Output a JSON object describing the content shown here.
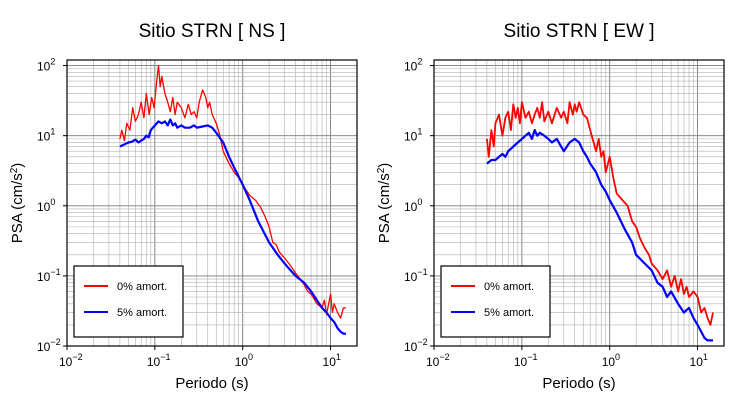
{
  "chart_data": [
    {
      "type": "line",
      "title": "Sitio STRN [ NS ]",
      "xlabel": "Periodo (s)",
      "ylabel_main": "PSA (cm/s",
      "ylabel_sup": "2",
      "ylabel_tail": ")",
      "xscale": "log",
      "yscale": "log",
      "xlim": [
        0.01,
        20
      ],
      "ylim": [
        0.01,
        120
      ],
      "grid": true,
      "legend_position": "bottom-left",
      "x_ticks": [
        {
          "base": "10",
          "exp": "−2"
        },
        {
          "base": "10",
          "exp": "−1"
        },
        {
          "base": "10",
          "exp": "0"
        },
        {
          "base": "10",
          "exp": "1"
        }
      ],
      "y_ticks": [
        {
          "base": "10",
          "exp": "−2"
        },
        {
          "base": "10",
          "exp": "−1"
        },
        {
          "base": "10",
          "exp": "0"
        },
        {
          "base": "10",
          "exp": "1"
        },
        {
          "base": "10",
          "exp": "2"
        }
      ],
      "series": [
        {
          "name": "0% amort.",
          "color": "#ff0000",
          "line_width": 1.3,
          "x": [
            0.04,
            0.042,
            0.045,
            0.048,
            0.052,
            0.056,
            0.06,
            0.065,
            0.07,
            0.075,
            0.08,
            0.086,
            0.092,
            0.098,
            0.105,
            0.11,
            0.115,
            0.12,
            0.13,
            0.14,
            0.15,
            0.16,
            0.17,
            0.18,
            0.2,
            0.22,
            0.24,
            0.26,
            0.28,
            0.3,
            0.32,
            0.35,
            0.38,
            0.4,
            0.42,
            0.45,
            0.5,
            0.55,
            0.6,
            0.7,
            0.8,
            0.9,
            1.0,
            1.2,
            1.4,
            1.6,
            1.8,
            2.0,
            2.2,
            2.4,
            2.6,
            3.0,
            3.5,
            4.0,
            4.5,
            5.0,
            5.5,
            6.0,
            7.0,
            8.0,
            8.5,
            9.0,
            10.0,
            10.5,
            11.0,
            12.0,
            13.0,
            14.0,
            15.0
          ],
          "y": [
            9.0,
            12.0,
            8.5,
            15.0,
            12.0,
            25.0,
            16.0,
            20.0,
            30.0,
            18.0,
            40.0,
            20.0,
            35.0,
            25.0,
            60.0,
            100.0,
            50.0,
            70.0,
            40.0,
            30.0,
            22.0,
            35.0,
            20.0,
            30.0,
            25.0,
            18.0,
            28.0,
            20.0,
            22.0,
            18.0,
            30.0,
            45.0,
            35.0,
            25.0,
            30.0,
            20.0,
            15.0,
            10.0,
            6.0,
            4.0,
            3.0,
            2.5,
            2.0,
            1.4,
            1.2,
            0.95,
            0.7,
            0.5,
            0.3,
            0.28,
            0.22,
            0.18,
            0.14,
            0.11,
            0.09,
            0.075,
            0.06,
            0.055,
            0.04,
            0.035,
            0.045,
            0.028,
            0.055,
            0.03,
            0.04,
            0.03,
            0.025,
            0.035,
            0.035
          ]
        },
        {
          "name": "5% amort.",
          "color": "#0000ff",
          "line_width": 2.2,
          "x": [
            0.04,
            0.045,
            0.05,
            0.055,
            0.06,
            0.065,
            0.07,
            0.075,
            0.08,
            0.085,
            0.09,
            0.095,
            0.1,
            0.11,
            0.12,
            0.13,
            0.14,
            0.15,
            0.16,
            0.17,
            0.18,
            0.2,
            0.22,
            0.25,
            0.28,
            0.3,
            0.35,
            0.4,
            0.45,
            0.5,
            0.6,
            0.7,
            0.8,
            1.0,
            1.2,
            1.5,
            2.0,
            2.5,
            3.0,
            3.5,
            4.0,
            5.0,
            6.0,
            7.0,
            8.0,
            9.0,
            10.0,
            11.0,
            12.0,
            13.0,
            14.0,
            15.0
          ],
          "y": [
            7.0,
            7.5,
            8.0,
            8.2,
            8.8,
            8.0,
            8.5,
            9.0,
            10.0,
            9.5,
            12.0,
            13.0,
            14.0,
            16.0,
            15.0,
            16.0,
            14.0,
            17.0,
            14.0,
            15.0,
            13.0,
            14.0,
            13.0,
            13.0,
            14.0,
            13.0,
            13.5,
            14.0,
            13.0,
            11.0,
            8.0,
            5.0,
            3.5,
            2.0,
            1.2,
            0.6,
            0.3,
            0.2,
            0.15,
            0.12,
            0.1,
            0.08,
            0.06,
            0.045,
            0.035,
            0.03,
            0.025,
            0.022,
            0.018,
            0.016,
            0.015,
            0.015
          ]
        }
      ]
    },
    {
      "type": "line",
      "title": "Sitio STRN [ EW ]",
      "xlabel": "Periodo (s)",
      "ylabel_main": "PSA (cm/s",
      "ylabel_sup": "2",
      "ylabel_tail": ")",
      "xscale": "log",
      "yscale": "log",
      "xlim": [
        0.01,
        20
      ],
      "ylim": [
        0.01,
        120
      ],
      "grid": true,
      "legend_position": "bottom-left",
      "x_ticks": [
        {
          "base": "10",
          "exp": "−2"
        },
        {
          "base": "10",
          "exp": "−1"
        },
        {
          "base": "10",
          "exp": "0"
        },
        {
          "base": "10",
          "exp": "1"
        }
      ],
      "y_ticks": [
        {
          "base": "10",
          "exp": "−2"
        },
        {
          "base": "10",
          "exp": "−1"
        },
        {
          "base": "10",
          "exp": "0"
        },
        {
          "base": "10",
          "exp": "1"
        },
        {
          "base": "10",
          "exp": "2"
        }
      ],
      "series": [
        {
          "name": "0% amort.",
          "color": "#ff0000",
          "line_width": 1.8,
          "x": [
            0.04,
            0.042,
            0.045,
            0.048,
            0.05,
            0.055,
            0.06,
            0.065,
            0.07,
            0.075,
            0.08,
            0.085,
            0.09,
            0.095,
            0.1,
            0.11,
            0.12,
            0.13,
            0.14,
            0.15,
            0.16,
            0.17,
            0.18,
            0.2,
            0.22,
            0.25,
            0.28,
            0.3,
            0.33,
            0.35,
            0.38,
            0.4,
            0.42,
            0.45,
            0.5,
            0.55,
            0.6,
            0.7,
            0.75,
            0.8,
            0.85,
            0.9,
            1.0,
            1.1,
            1.2,
            1.4,
            1.6,
            1.8,
            2.0,
            2.2,
            2.5,
            2.8,
            3.0,
            3.5,
            4.0,
            4.5,
            5.0,
            5.5,
            6.0,
            6.5,
            7.0,
            7.5,
            8.0,
            9.0,
            10.0,
            11.0,
            12.0,
            13.0,
            14.0,
            15.0
          ],
          "y": [
            9.0,
            5.0,
            12.0,
            7.0,
            15.0,
            20.0,
            10.0,
            18.0,
            22.0,
            12.0,
            28.0,
            18.0,
            25.0,
            15.0,
            30.0,
            18.0,
            22.0,
            15.0,
            20.0,
            25.0,
            18.0,
            30.0,
            16.0,
            22.0,
            15.0,
            25.0,
            18.0,
            22.0,
            15.0,
            30.0,
            20.0,
            28.0,
            22.0,
            30.0,
            20.0,
            18.0,
            12.0,
            6.0,
            9.0,
            5.0,
            6.0,
            3.0,
            5.0,
            2.5,
            1.5,
            1.2,
            1.0,
            0.6,
            0.5,
            0.35,
            0.25,
            0.2,
            0.15,
            0.12,
            0.09,
            0.12,
            0.07,
            0.1,
            0.06,
            0.09,
            0.055,
            0.07,
            0.05,
            0.06,
            0.05,
            0.03,
            0.035,
            0.025,
            0.02,
            0.03
          ]
        },
        {
          "name": "5% amort.",
          "color": "#0000ff",
          "line_width": 2.2,
          "x": [
            0.04,
            0.045,
            0.05,
            0.055,
            0.06,
            0.065,
            0.07,
            0.075,
            0.08,
            0.09,
            0.1,
            0.11,
            0.12,
            0.13,
            0.14,
            0.15,
            0.16,
            0.18,
            0.2,
            0.22,
            0.25,
            0.28,
            0.3,
            0.35,
            0.4,
            0.45,
            0.5,
            0.55,
            0.6,
            0.7,
            0.8,
            0.9,
            1.0,
            1.2,
            1.5,
            1.8,
            2.0,
            2.5,
            3.0,
            3.5,
            4.0,
            4.5,
            5.0,
            6.0,
            7.0,
            8.0,
            9.0,
            10.0,
            11.0,
            12.0,
            13.0,
            14.0,
            15.0
          ],
          "y": [
            4.0,
            4.5,
            4.5,
            5.0,
            5.5,
            5.0,
            6.0,
            6.5,
            7.0,
            8.0,
            9.0,
            10.0,
            11.0,
            9.0,
            12.0,
            10.0,
            11.0,
            10.0,
            9.0,
            8.0,
            9.0,
            7.0,
            6.0,
            8.0,
            9.0,
            8.0,
            6.0,
            5.0,
            4.0,
            3.0,
            2.0,
            1.6,
            1.2,
            0.8,
            0.45,
            0.3,
            0.2,
            0.15,
            0.12,
            0.08,
            0.07,
            0.05,
            0.06,
            0.04,
            0.03,
            0.035,
            0.025,
            0.02,
            0.016,
            0.013,
            0.012,
            0.012,
            0.012
          ]
        }
      ]
    }
  ]
}
